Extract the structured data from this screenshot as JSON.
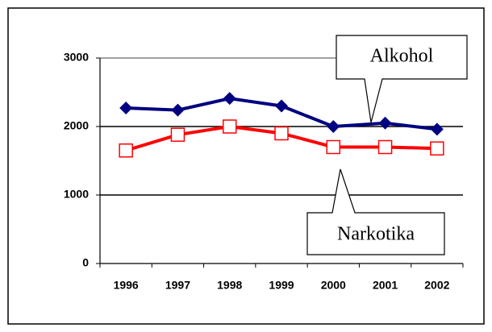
{
  "chart_data": {
    "type": "line",
    "categories": [
      "1996",
      "1997",
      "1998",
      "1999",
      "2000",
      "2001",
      "2002"
    ],
    "series": [
      {
        "name": "Alkohol",
        "color": "#000080",
        "marker": "filled-diamond",
        "values": [
          2270,
          2240,
          2410,
          2300,
          2000,
          2050,
          1960
        ]
      },
      {
        "name": "Narkotika",
        "color": "#ff0000",
        "marker": "open-square",
        "values": [
          1650,
          1880,
          2000,
          1900,
          1700,
          1700,
          1680
        ]
      }
    ],
    "ylim": [
      0,
      3000
    ],
    "yticks": [
      0,
      1000,
      2000,
      3000
    ],
    "grid": true
  }
}
